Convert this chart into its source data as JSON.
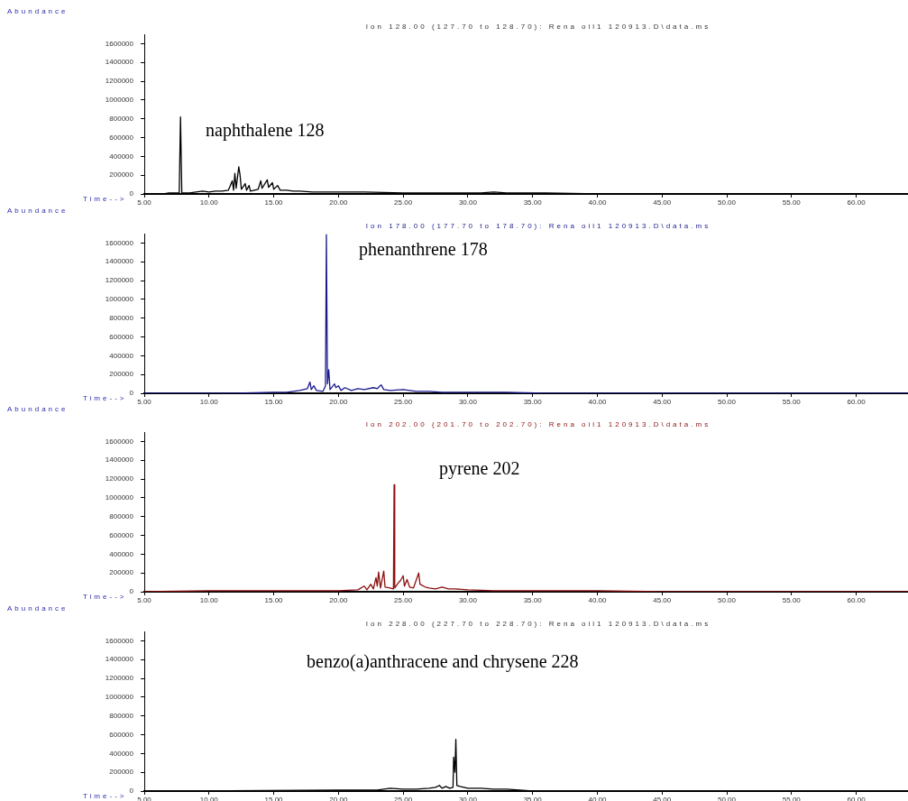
{
  "chart_data": [
    {
      "type": "line",
      "title": "Ion 128.00 (127.70 to 128.70): Rena oil1 120913.D\\data.ms",
      "xlabel": "Time-->",
      "ylabel": "Abundance",
      "annotations": [
        "naphthalene 128"
      ],
      "grid": false,
      "legend": false,
      "marker": "none",
      "xlim": [
        5,
        64
      ],
      "xticks": [
        {
          "value": 5,
          "label": "5.00"
        },
        {
          "value": 10,
          "label": "10.00"
        },
        {
          "value": 15,
          "label": "15.00"
        },
        {
          "value": 20,
          "label": "20.00"
        },
        {
          "value": 25,
          "label": "25.00"
        },
        {
          "value": 30,
          "label": "30.00"
        },
        {
          "value": 35,
          "label": "35.00"
        },
        {
          "value": 40,
          "label": "40.00"
        },
        {
          "value": 45,
          "label": "45.00"
        },
        {
          "value": 50,
          "label": "50.00"
        },
        {
          "value": 55,
          "label": "55.00"
        },
        {
          "value": 60,
          "label": "60.00"
        }
      ],
      "ylim": [
        0,
        1700000
      ],
      "yticks": [
        0,
        200000,
        400000,
        600000,
        800000,
        1000000,
        1200000,
        1400000,
        1600000
      ],
      "series": [
        {
          "color": "#000000",
          "x": [
            5,
            6.5,
            6.9,
            7.2,
            7.7,
            7.8,
            7.9,
            8.5,
            9,
            9.5,
            10,
            10.5,
            11,
            11.5,
            11.8,
            11.9,
            12.0,
            12.1,
            12.3,
            12.4,
            12.5,
            12.8,
            12.9,
            13.1,
            13.2,
            13.8,
            14.0,
            14.1,
            14.5,
            14.6,
            14.9,
            15.0,
            15.3,
            15.5,
            16,
            16.5,
            17,
            18,
            19,
            20,
            22,
            25,
            28,
            31,
            32,
            33,
            36,
            40,
            45,
            64
          ],
          "values": [
            0,
            0,
            10000,
            10000,
            10000,
            820000,
            10000,
            10000,
            20000,
            30000,
            20000,
            30000,
            30000,
            40000,
            140000,
            40000,
            220000,
            60000,
            290000,
            200000,
            50000,
            110000,
            40000,
            90000,
            30000,
            50000,
            140000,
            60000,
            150000,
            70000,
            120000,
            50000,
            90000,
            40000,
            40000,
            30000,
            30000,
            20000,
            20000,
            20000,
            20000,
            10000,
            10000,
            10000,
            20000,
            10000,
            10000,
            0,
            0,
            0
          ]
        }
      ]
    },
    {
      "type": "line",
      "title": "Ion 178.00 (177.70 to 178.70): Rena oil1 120913.D\\data.ms",
      "xlabel": "Time-->",
      "ylabel": "Abundance",
      "annotations": [
        "phenanthrene 178"
      ],
      "grid": false,
      "legend": false,
      "marker": "none",
      "xlim": [
        5,
        64
      ],
      "xticks": [
        {
          "value": 5,
          "label": "5.00"
        },
        {
          "value": 10,
          "label": "10.00"
        },
        {
          "value": 15,
          "label": "15.00"
        },
        {
          "value": 20,
          "label": "20.00"
        },
        {
          "value": 25,
          "label": "25.00"
        },
        {
          "value": 30,
          "label": "30.00"
        },
        {
          "value": 35,
          "label": "35.00"
        },
        {
          "value": 40,
          "label": "40.00"
        },
        {
          "value": 45,
          "label": "45.00"
        },
        {
          "value": 50,
          "label": "50.00"
        },
        {
          "value": 55,
          "label": "55.00"
        },
        {
          "value": 60,
          "label": "60.00"
        }
      ],
      "ylim": [
        0,
        1700000
      ],
      "yticks": [
        0,
        200000,
        400000,
        600000,
        800000,
        1000000,
        1200000,
        1400000,
        1600000
      ],
      "series": [
        {
          "color": "#1a1a8c",
          "x": [
            5,
            12,
            15,
            16,
            17,
            17.6,
            17.8,
            17.9,
            18.1,
            18.3,
            18.8,
            19.0,
            19.07,
            19.15,
            19.25,
            19.35,
            19.7,
            19.8,
            20.0,
            20.2,
            20.5,
            21,
            21.5,
            22,
            22.7,
            23.0,
            23.3,
            23.5,
            24,
            25,
            26,
            27,
            28,
            30,
            33,
            36,
            64
          ],
          "values": [
            0,
            0,
            10000,
            10000,
            30000,
            50000,
            120000,
            40000,
            80000,
            30000,
            20000,
            80000,
            1690000,
            100000,
            250000,
            40000,
            100000,
            60000,
            80000,
            30000,
            60000,
            30000,
            50000,
            40000,
            60000,
            50000,
            90000,
            40000,
            30000,
            40000,
            20000,
            20000,
            10000,
            10000,
            10000,
            0,
            0
          ]
        }
      ]
    },
    {
      "type": "line",
      "title": "Ion 202.00 (201.70 to 202.70): Rena oil1 120913.D\\data.ms",
      "xlabel": "Time-->",
      "ylabel": "Abundance",
      "annotations": [
        "pyrene 202"
      ],
      "grid": false,
      "legend": false,
      "marker": "none",
      "xlim": [
        5,
        64
      ],
      "xticks": [
        {
          "value": 5,
          "label": "5.00"
        },
        {
          "value": 10,
          "label": "10.00"
        },
        {
          "value": 15,
          "label": "15.00"
        },
        {
          "value": 20,
          "label": "20.00"
        },
        {
          "value": 25,
          "label": "25.00"
        },
        {
          "value": 30,
          "label": "30.00"
        },
        {
          "value": 35,
          "label": "35.00"
        },
        {
          "value": 40,
          "label": "40.00"
        },
        {
          "value": 45,
          "label": "45.00"
        },
        {
          "value": 50,
          "label": "50.00"
        },
        {
          "value": 55,
          "label": "55.00"
        },
        {
          "value": 60,
          "label": "60.00"
        }
      ],
      "ylim": [
        0,
        1700000
      ],
      "yticks": [
        0,
        200000,
        400000,
        600000,
        800000,
        1000000,
        1200000,
        1400000,
        1600000
      ],
      "series": [
        {
          "color": "#8b1010",
          "x": [
            5,
            10,
            15,
            18,
            20,
            21.5,
            22,
            22.2,
            22.5,
            22.7,
            22.9,
            23.0,
            23.1,
            23.25,
            23.5,
            23.6,
            24.0,
            24.25,
            24.3,
            24.35,
            24.6,
            24.8,
            25.0,
            25.1,
            25.3,
            25.5,
            25.8,
            26.2,
            26.3,
            26.7,
            27,
            27.5,
            28,
            28.5,
            29,
            30,
            32,
            35,
            40,
            45,
            50,
            55,
            64
          ],
          "values": [
            0,
            10000,
            10000,
            10000,
            10000,
            20000,
            60000,
            20000,
            80000,
            30000,
            150000,
            60000,
            210000,
            40000,
            220000,
            50000,
            40000,
            30000,
            1140000,
            40000,
            90000,
            120000,
            170000,
            60000,
            130000,
            50000,
            40000,
            200000,
            80000,
            50000,
            40000,
            30000,
            50000,
            30000,
            30000,
            20000,
            10000,
            10000,
            10000,
            0,
            0,
            0,
            0
          ]
        }
      ]
    },
    {
      "type": "line",
      "title": "Ion 228.00 (227.70 to 228.70): Rena oil1 120913.D\\data.ms",
      "xlabel": "Time-->",
      "ylabel": "Abundance",
      "annotations": [
        "benzo(a)anthracene and chrysene 228"
      ],
      "grid": false,
      "legend": false,
      "marker": "none",
      "xlim": [
        5,
        64
      ],
      "xticks": [
        {
          "value": 5,
          "label": "5.00"
        },
        {
          "value": 10,
          "label": "10.00"
        },
        {
          "value": 15,
          "label": "15.00"
        },
        {
          "value": 20,
          "label": "20.00"
        },
        {
          "value": 25,
          "label": "25.00"
        },
        {
          "value": 30,
          "label": "30.00"
        },
        {
          "value": 35,
          "label": "35.00"
        },
        {
          "value": 40,
          "label": "40.00"
        },
        {
          "value": 45,
          "label": "45.00"
        },
        {
          "value": 50,
          "label": "50.00"
        },
        {
          "value": 55,
          "label": "55.00"
        },
        {
          "value": 60,
          "label": "60.00"
        }
      ],
      "ylim": [
        0,
        1700000
      ],
      "yticks": [
        0,
        200000,
        400000,
        600000,
        800000,
        1000000,
        1200000,
        1400000,
        1600000
      ],
      "series": [
        {
          "color": "#000000",
          "x": [
            5,
            20,
            23,
            24,
            25,
            26,
            27,
            27.5,
            27.8,
            28.0,
            28.3,
            28.6,
            28.85,
            28.9,
            29.0,
            29.07,
            29.15,
            29.4,
            30,
            31,
            32,
            33,
            34,
            35,
            36,
            64
          ],
          "values": [
            0,
            10000,
            10000,
            30000,
            20000,
            20000,
            30000,
            40000,
            60000,
            30000,
            50000,
            30000,
            40000,
            360000,
            200000,
            550000,
            60000,
            50000,
            30000,
            30000,
            20000,
            20000,
            10000,
            0,
            0,
            0
          ]
        }
      ]
    }
  ]
}
